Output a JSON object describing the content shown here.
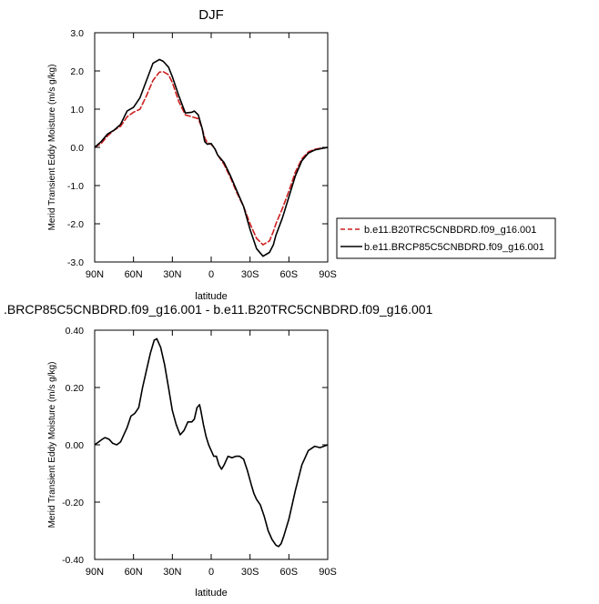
{
  "chart_data": [
    {
      "type": "line",
      "title": "DJF",
      "xlabel": "latitude",
      "ylabel": "Merid Transient Eddy Moisture (m/s g/kg)",
      "xlim": [
        90,
        -90
      ],
      "ylim": [
        -3.0,
        3.0
      ],
      "x_ticks": [
        90,
        60,
        30,
        0,
        -30,
        -60,
        -90
      ],
      "x_tick_labels": [
        "90N",
        "60N",
        "30N",
        "0",
        "30S",
        "60S",
        "90S"
      ],
      "y_ticks": [
        3.0,
        2.0,
        1.0,
        0.0,
        -1.0,
        -2.0,
        -3.0
      ],
      "y_tick_labels": [
        "3.0",
        "2.0",
        "1.0",
        "0.0",
        "-1.0",
        "-2.0",
        "-3.0"
      ],
      "grid": false,
      "legend_position": "right",
      "series": [
        {
          "name": "b.e11.B20TRC5CNBDRD.f09_g16.001",
          "color": "#cc1f1f",
          "dash": "dashed",
          "x": [
            90,
            85,
            80,
            75,
            70,
            65,
            60,
            55,
            50,
            45,
            40,
            37,
            33,
            30,
            25,
            20,
            15,
            10,
            7,
            5,
            3,
            0,
            -3,
            -5,
            -10,
            -15,
            -20,
            -25,
            -30,
            -35,
            -40,
            -45,
            -48,
            -50,
            -55,
            -60,
            -65,
            -70,
            -75,
            -80,
            -85,
            -90
          ],
          "y": [
            0.0,
            0.1,
            0.3,
            0.45,
            0.55,
            0.8,
            0.92,
            1.0,
            1.35,
            1.75,
            1.97,
            1.98,
            1.9,
            1.7,
            1.2,
            0.85,
            0.8,
            0.75,
            0.5,
            0.25,
            0.12,
            0.08,
            -0.05,
            -0.2,
            -0.45,
            -0.8,
            -1.2,
            -1.55,
            -2.0,
            -2.38,
            -2.55,
            -2.45,
            -2.2,
            -2.0,
            -1.6,
            -1.15,
            -0.65,
            -0.3,
            -0.12,
            -0.05,
            -0.02,
            0.0
          ]
        },
        {
          "name": "b.e11.BRCP85C5CNBDRD.f09_g16.001",
          "color": "#000000",
          "dash": "solid",
          "x": [
            90,
            85,
            80,
            75,
            70,
            65,
            60,
            55,
            50,
            45,
            40,
            37,
            33,
            30,
            25,
            20,
            15,
            13,
            10,
            7,
            5,
            3,
            0,
            -3,
            -5,
            -10,
            -15,
            -20,
            -25,
            -30,
            -35,
            -40,
            -45,
            -48,
            -50,
            -55,
            -60,
            -65,
            -70,
            -75,
            -80,
            -85,
            -90
          ],
          "y": [
            0.0,
            0.15,
            0.35,
            0.45,
            0.6,
            0.95,
            1.05,
            1.3,
            1.75,
            2.2,
            2.3,
            2.25,
            2.1,
            1.85,
            1.35,
            0.9,
            0.92,
            0.95,
            0.85,
            0.5,
            0.15,
            0.08,
            0.1,
            -0.05,
            -0.2,
            -0.4,
            -0.75,
            -1.15,
            -1.55,
            -2.15,
            -2.65,
            -2.85,
            -2.75,
            -2.55,
            -2.3,
            -1.85,
            -1.3,
            -0.75,
            -0.35,
            -0.15,
            -0.07,
            -0.03,
            0.0
          ]
        }
      ]
    },
    {
      "type": "line",
      "title": ".BRCP85C5CNBDRD.f09_g16.001 - b.e11.B20TRC5CNBDRD.f09_g16.001",
      "xlabel": "latitude",
      "ylabel": "Merid Transient Eddy Moisture (m/s g/kg)",
      "xlim": [
        90,
        -90
      ],
      "ylim": [
        -0.4,
        0.4
      ],
      "x_ticks": [
        90,
        60,
        30,
        0,
        -30,
        -60,
        -90
      ],
      "x_tick_labels": [
        "90N",
        "60N",
        "30N",
        "0",
        "30S",
        "60S",
        "90S"
      ],
      "y_ticks": [
        0.4,
        0.2,
        0.0,
        -0.2,
        -0.4
      ],
      "y_tick_labels": [
        "0.40",
        "0.20",
        "0.00",
        "-0.20",
        "-0.40"
      ],
      "grid": false,
      "series": [
        {
          "name": "",
          "color": "#000000",
          "dash": "solid",
          "x": [
            90,
            87,
            84,
            82,
            79,
            76,
            73,
            70,
            65,
            62,
            59,
            56,
            53,
            50,
            47,
            44,
            42,
            39,
            36,
            33,
            30,
            27,
            24,
            21,
            18,
            15,
            13,
            11,
            9,
            8,
            6,
            4,
            2,
            0,
            -2,
            -4,
            -6,
            -8,
            -10,
            -13,
            -16,
            -19,
            -22,
            -25,
            -28,
            -31,
            -33,
            -35,
            -38,
            -41,
            -44,
            -47,
            -50,
            -52,
            -54,
            -56,
            -60,
            -65,
            -70,
            -75,
            -80,
            -84,
            -87,
            -90
          ],
          "y": [
            0.0,
            0.01,
            0.02,
            0.025,
            0.02,
            0.005,
            0.0,
            0.01,
            0.06,
            0.1,
            0.11,
            0.13,
            0.2,
            0.26,
            0.32,
            0.365,
            0.37,
            0.34,
            0.28,
            0.2,
            0.12,
            0.07,
            0.035,
            0.05,
            0.08,
            0.08,
            0.09,
            0.13,
            0.14,
            0.12,
            0.07,
            0.03,
            0.0,
            -0.02,
            -0.04,
            -0.04,
            -0.07,
            -0.085,
            -0.07,
            -0.04,
            -0.045,
            -0.04,
            -0.04,
            -0.05,
            -0.09,
            -0.14,
            -0.17,
            -0.19,
            -0.21,
            -0.25,
            -0.3,
            -0.33,
            -0.35,
            -0.355,
            -0.345,
            -0.32,
            -0.26,
            -0.16,
            -0.07,
            -0.02,
            -0.005,
            -0.01,
            -0.005,
            0.0
          ]
        }
      ]
    }
  ]
}
